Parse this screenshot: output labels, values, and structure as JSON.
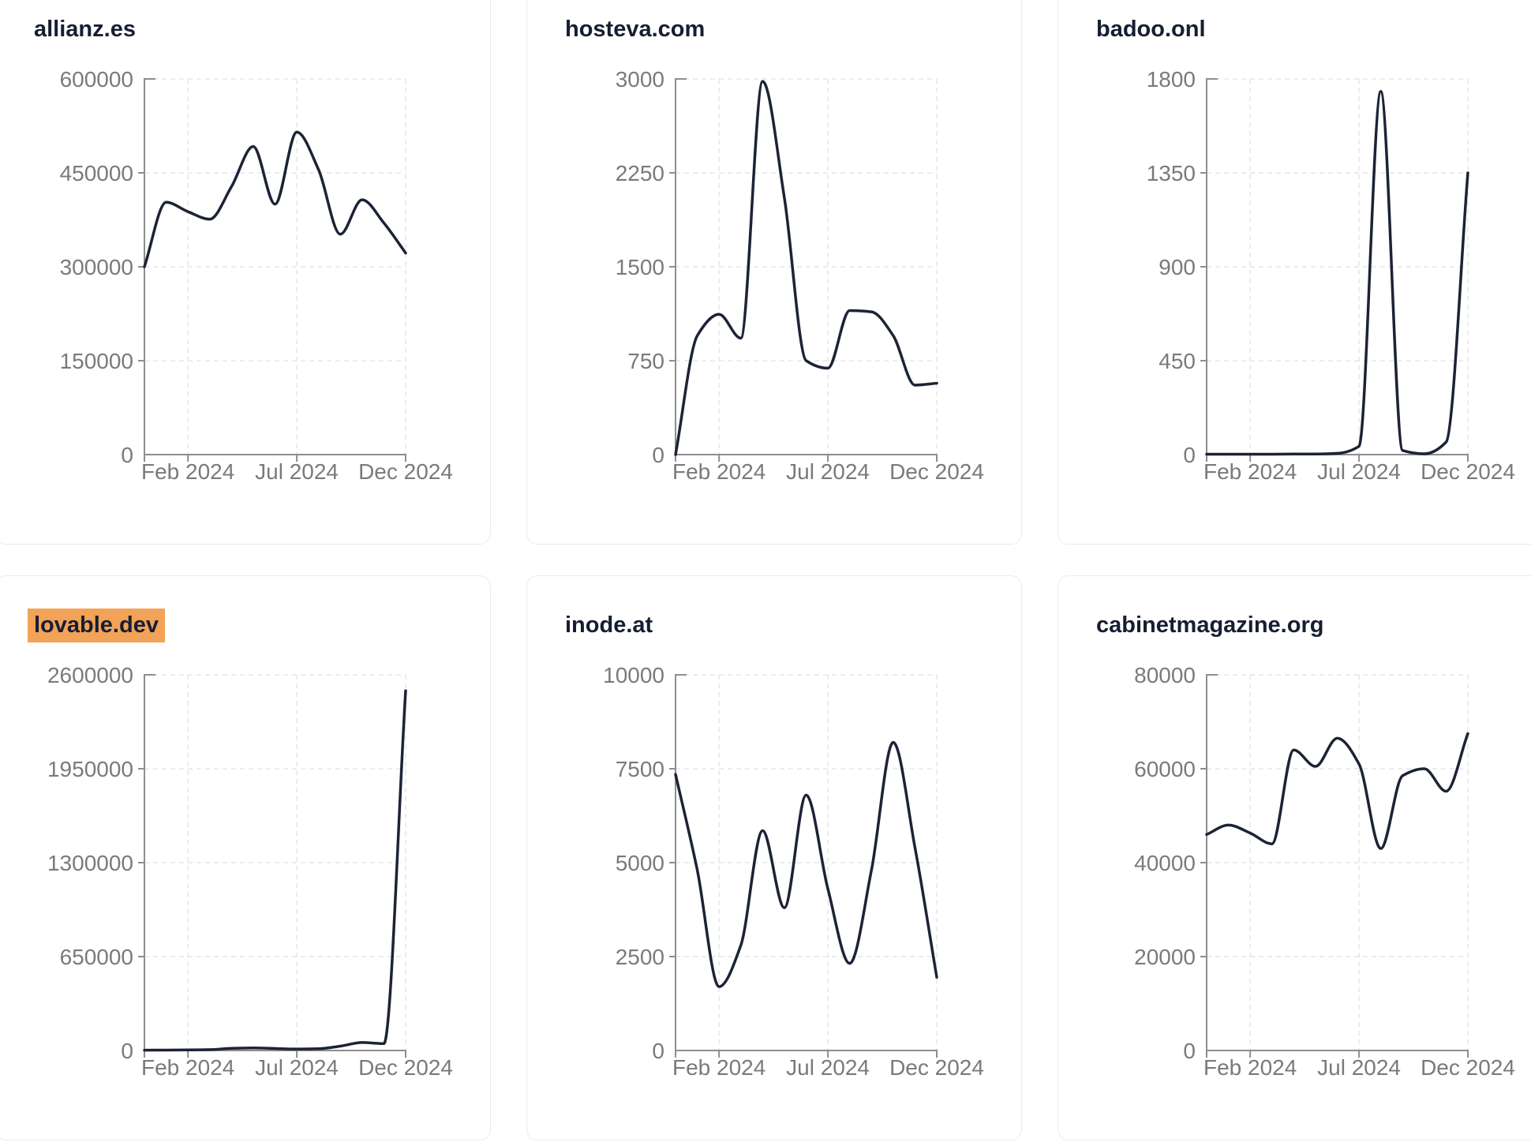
{
  "style": {
    "background": "#ffffff",
    "card_border_color": "#e9ebf1",
    "title_color": "#171e33",
    "highlight_color": "#f2a357",
    "line_color": "#1c2336",
    "axis_color": "#8e8e8e",
    "tick_label_color": "#7a7a7a",
    "grid_color": "#e3e5ea"
  },
  "chart_data": [
    {
      "type": "line",
      "title": "allianz.es",
      "title_highlighted": false,
      "x": [
        "2023-12",
        "2024-01",
        "2024-02",
        "2024-03",
        "2024-04",
        "2024-05",
        "2024-06",
        "2024-07",
        "2024-08",
        "2024-09",
        "2024-10",
        "2024-11",
        "2024-12"
      ],
      "values": [
        300000,
        403000,
        388000,
        376000,
        428000,
        492000,
        400000,
        515000,
        455000,
        352000,
        407000,
        370000,
        322000
      ],
      "ylim": [
        0,
        600000
      ],
      "y_tick_labels": [
        "0",
        "150000",
        "300000",
        "450000",
        "600000"
      ],
      "x_tick_labels": [
        "Feb 2024",
        "Jul 2024",
        "Dec 2024"
      ],
      "x_tick_indices": [
        2,
        7,
        12
      ],
      "grid": true,
      "legend": "none"
    },
    {
      "type": "line",
      "title": "hosteva.com",
      "title_highlighted": false,
      "x": [
        "2023-12",
        "2024-01",
        "2024-02",
        "2024-03",
        "2024-04",
        "2024-05",
        "2024-06",
        "2024-07",
        "2024-08",
        "2024-09",
        "2024-10",
        "2024-11",
        "2024-12"
      ],
      "values": [
        0,
        950,
        1120,
        930,
        2980,
        2050,
        750,
        690,
        1150,
        1140,
        950,
        555,
        570
      ],
      "ylim": [
        0,
        3000
      ],
      "y_tick_labels": [
        "0",
        "750",
        "1500",
        "2250",
        "3000"
      ],
      "x_tick_labels": [
        "Feb 2024",
        "Jul 2024",
        "Dec 2024"
      ],
      "x_tick_indices": [
        2,
        7,
        12
      ],
      "grid": true,
      "legend": "none"
    },
    {
      "type": "line",
      "title": "badoo.onl",
      "title_highlighted": false,
      "x": [
        "2023-12",
        "2024-01",
        "2024-02",
        "2024-03",
        "2024-04",
        "2024-05",
        "2024-06",
        "2024-07",
        "2024-08",
        "2024-09",
        "2024-10",
        "2024-11",
        "2024-12"
      ],
      "values": [
        2,
        2,
        2,
        2,
        3,
        3,
        6,
        40,
        1740,
        20,
        4,
        60,
        1350
      ],
      "ylim": [
        0,
        1800
      ],
      "y_tick_labels": [
        "0",
        "450",
        "900",
        "1350",
        "1800"
      ],
      "x_tick_labels": [
        "Feb 2024",
        "Jul 2024",
        "Dec 2024"
      ],
      "x_tick_indices": [
        2,
        7,
        12
      ],
      "grid": true,
      "legend": "none"
    },
    {
      "type": "line",
      "title": "lovable.dev",
      "title_highlighted": true,
      "x": [
        "2023-12",
        "2024-01",
        "2024-02",
        "2024-03",
        "2024-04",
        "2024-05",
        "2024-06",
        "2024-07",
        "2024-08",
        "2024-09",
        "2024-10",
        "2024-11",
        "2024-12"
      ],
      "values": [
        2000,
        3000,
        4000,
        6000,
        15000,
        18000,
        14000,
        10000,
        12000,
        30000,
        55000,
        48000,
        2490000
      ],
      "ylim": [
        0,
        2600000
      ],
      "y_tick_labels": [
        "0",
        "650000",
        "1300000",
        "1950000",
        "2600000"
      ],
      "x_tick_labels": [
        "Feb 2024",
        "Jul 2024",
        "Dec 2024"
      ],
      "x_tick_indices": [
        2,
        7,
        12
      ],
      "grid": true,
      "legend": "none"
    },
    {
      "type": "line",
      "title": "inode.at",
      "title_highlighted": false,
      "x": [
        "2023-12",
        "2024-01",
        "2024-02",
        "2024-03",
        "2024-04",
        "2024-05",
        "2024-06",
        "2024-07",
        "2024-08",
        "2024-09",
        "2024-10",
        "2024-11",
        "2024-12"
      ],
      "values": [
        7350,
        4800,
        1700,
        2800,
        5850,
        3800,
        6800,
        4300,
        2320,
        4800,
        8200,
        5400,
        1950
      ],
      "ylim": [
        0,
        10000
      ],
      "y_tick_labels": [
        "0",
        "2500",
        "5000",
        "7500",
        "10000"
      ],
      "x_tick_labels": [
        "Feb 2024",
        "Jul 2024",
        "Dec 2024"
      ],
      "x_tick_indices": [
        2,
        7,
        12
      ],
      "grid": true,
      "legend": "none"
    },
    {
      "type": "line",
      "title": "cabinetmagazine.org",
      "title_highlighted": false,
      "x": [
        "2023-12",
        "2024-01",
        "2024-02",
        "2024-03",
        "2024-04",
        "2024-05",
        "2024-06",
        "2024-07",
        "2024-08",
        "2024-09",
        "2024-10",
        "2024-11",
        "2024-12"
      ],
      "values": [
        46000,
        48000,
        46300,
        44000,
        64000,
        60500,
        66500,
        61000,
        43000,
        58500,
        60000,
        55200,
        67500
      ],
      "ylim": [
        0,
        80000
      ],
      "y_tick_labels": [
        "0",
        "20000",
        "40000",
        "60000",
        "80000"
      ],
      "x_tick_labels": [
        "Feb 2024",
        "Jul 2024",
        "Dec 2024"
      ],
      "x_tick_indices": [
        2,
        7,
        12
      ],
      "grid": true,
      "legend": "none"
    }
  ]
}
